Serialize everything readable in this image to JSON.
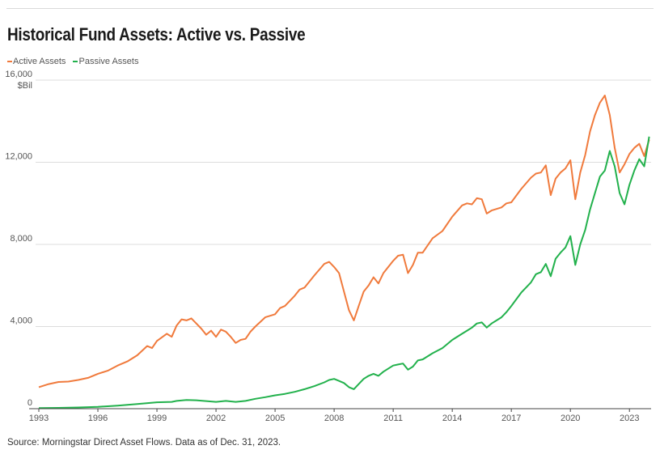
{
  "chart_data": {
    "type": "line",
    "title": "Historical Fund Assets: Active vs. Passive",
    "ylabel": "$Bil",
    "xlabel": "",
    "xlim": [
      1993,
      2024.1
    ],
    "ylim": [
      0,
      16000
    ],
    "yticks": [
      0,
      4000,
      8000,
      12000,
      16000
    ],
    "ytick_labels": [
      "0",
      "4,000",
      "8,000",
      "12,000",
      "16,000"
    ],
    "xticks": [
      1993,
      1996,
      1999,
      2002,
      2005,
      2008,
      2011,
      2014,
      2017,
      2020,
      2023
    ],
    "xtick_labels": [
      "1993",
      "1996",
      "1999",
      "2002",
      "2005",
      "2008",
      "2011",
      "2014",
      "2017",
      "2020",
      "2023"
    ],
    "grid": "horizontal",
    "legend_position": "top-left",
    "source": "Source: Morningstar Direct Asset Flows. Data as of Dec. 31, 2023.",
    "series": [
      {
        "name": "Active Assets",
        "color": "#f07a3c",
        "points": [
          [
            1993.0,
            1050
          ],
          [
            1993.5,
            1200
          ],
          [
            1994.0,
            1300
          ],
          [
            1994.5,
            1320
          ],
          [
            1995.0,
            1400
          ],
          [
            1995.5,
            1500
          ],
          [
            1996.0,
            1700
          ],
          [
            1996.5,
            1850
          ],
          [
            1997.0,
            2100
          ],
          [
            1997.5,
            2300
          ],
          [
            1998.0,
            2600
          ],
          [
            1998.5,
            3050
          ],
          [
            1998.75,
            2950
          ],
          [
            1999.0,
            3300
          ],
          [
            1999.5,
            3650
          ],
          [
            1999.75,
            3500
          ],
          [
            2000.0,
            4050
          ],
          [
            2000.25,
            4350
          ],
          [
            2000.5,
            4300
          ],
          [
            2000.75,
            4400
          ],
          [
            2001.0,
            4150
          ],
          [
            2001.25,
            3900
          ],
          [
            2001.5,
            3600
          ],
          [
            2001.75,
            3800
          ],
          [
            2002.0,
            3500
          ],
          [
            2002.25,
            3850
          ],
          [
            2002.5,
            3750
          ],
          [
            2002.75,
            3500
          ],
          [
            2003.0,
            3200
          ],
          [
            2003.25,
            3350
          ],
          [
            2003.5,
            3400
          ],
          [
            2003.75,
            3750
          ],
          [
            2004.0,
            4000
          ],
          [
            2004.5,
            4450
          ],
          [
            2005.0,
            4600
          ],
          [
            2005.25,
            4900
          ],
          [
            2005.5,
            5000
          ],
          [
            2006.0,
            5500
          ],
          [
            2006.25,
            5800
          ],
          [
            2006.5,
            5900
          ],
          [
            2007.0,
            6500
          ],
          [
            2007.5,
            7050
          ],
          [
            2007.75,
            7150
          ],
          [
            2008.0,
            6900
          ],
          [
            2008.25,
            6600
          ],
          [
            2008.5,
            5700
          ],
          [
            2008.75,
            4800
          ],
          [
            2009.0,
            4300
          ],
          [
            2009.25,
            5000
          ],
          [
            2009.5,
            5700
          ],
          [
            2009.75,
            6000
          ],
          [
            2010.0,
            6400
          ],
          [
            2010.25,
            6100
          ],
          [
            2010.5,
            6600
          ],
          [
            2011.0,
            7200
          ],
          [
            2011.25,
            7450
          ],
          [
            2011.5,
            7500
          ],
          [
            2011.75,
            6600
          ],
          [
            2012.0,
            7000
          ],
          [
            2012.25,
            7600
          ],
          [
            2012.5,
            7600
          ],
          [
            2013.0,
            8300
          ],
          [
            2013.5,
            8650
          ],
          [
            2014.0,
            9350
          ],
          [
            2014.5,
            9900
          ],
          [
            2014.75,
            10000
          ],
          [
            2015.0,
            9950
          ],
          [
            2015.25,
            10250
          ],
          [
            2015.5,
            10200
          ],
          [
            2015.75,
            9500
          ],
          [
            2016.0,
            9650
          ],
          [
            2016.5,
            9800
          ],
          [
            2016.75,
            10000
          ],
          [
            2017.0,
            10050
          ],
          [
            2017.5,
            10700
          ],
          [
            2018.0,
            11250
          ],
          [
            2018.25,
            11450
          ],
          [
            2018.5,
            11500
          ],
          [
            2018.75,
            11850
          ],
          [
            2019.0,
            10400
          ],
          [
            2019.25,
            11200
          ],
          [
            2019.5,
            11500
          ],
          [
            2019.75,
            11700
          ],
          [
            2020.0,
            12100
          ],
          [
            2020.25,
            10200
          ],
          [
            2020.5,
            11500
          ],
          [
            2020.75,
            12350
          ],
          [
            2021.0,
            13500
          ],
          [
            2021.25,
            14300
          ],
          [
            2021.5,
            14900
          ],
          [
            2021.75,
            15250
          ],
          [
            2022.0,
            14300
          ],
          [
            2022.25,
            12700
          ],
          [
            2022.5,
            11500
          ],
          [
            2022.75,
            11900
          ],
          [
            2023.0,
            12400
          ],
          [
            2023.25,
            12700
          ],
          [
            2023.5,
            12900
          ],
          [
            2023.75,
            12300
          ],
          [
            2024.0,
            13100
          ]
        ]
      },
      {
        "name": "Passive Assets",
        "color": "#22b14c",
        "points": [
          [
            1993.0,
            30
          ],
          [
            1994.0,
            40
          ],
          [
            1995.0,
            60
          ],
          [
            1996.0,
            90
          ],
          [
            1997.0,
            150
          ],
          [
            1998.0,
            230
          ],
          [
            1999.0,
            310
          ],
          [
            1999.75,
            330
          ],
          [
            2000.0,
            380
          ],
          [
            2000.5,
            420
          ],
          [
            2001.0,
            410
          ],
          [
            2001.5,
            370
          ],
          [
            2002.0,
            330
          ],
          [
            2002.5,
            380
          ],
          [
            2003.0,
            330
          ],
          [
            2003.5,
            380
          ],
          [
            2004.0,
            480
          ],
          [
            2004.5,
            560
          ],
          [
            2005.0,
            650
          ],
          [
            2005.5,
            720
          ],
          [
            2006.0,
            820
          ],
          [
            2006.5,
            950
          ],
          [
            2007.0,
            1100
          ],
          [
            2007.5,
            1280
          ],
          [
            2007.75,
            1400
          ],
          [
            2008.0,
            1450
          ],
          [
            2008.25,
            1350
          ],
          [
            2008.5,
            1250
          ],
          [
            2008.75,
            1050
          ],
          [
            2009.0,
            950
          ],
          [
            2009.25,
            1200
          ],
          [
            2009.5,
            1450
          ],
          [
            2009.75,
            1600
          ],
          [
            2010.0,
            1700
          ],
          [
            2010.25,
            1600
          ],
          [
            2010.5,
            1800
          ],
          [
            2011.0,
            2100
          ],
          [
            2011.25,
            2150
          ],
          [
            2011.5,
            2200
          ],
          [
            2011.75,
            1900
          ],
          [
            2012.0,
            2050
          ],
          [
            2012.25,
            2350
          ],
          [
            2012.5,
            2400
          ],
          [
            2013.0,
            2700
          ],
          [
            2013.5,
            2950
          ],
          [
            2014.0,
            3350
          ],
          [
            2014.5,
            3650
          ],
          [
            2014.75,
            3800
          ],
          [
            2015.0,
            3950
          ],
          [
            2015.25,
            4150
          ],
          [
            2015.5,
            4200
          ],
          [
            2015.75,
            3950
          ],
          [
            2016.0,
            4150
          ],
          [
            2016.5,
            4450
          ],
          [
            2016.75,
            4700
          ],
          [
            2017.0,
            5000
          ],
          [
            2017.5,
            5650
          ],
          [
            2018.0,
            6150
          ],
          [
            2018.25,
            6550
          ],
          [
            2018.5,
            6650
          ],
          [
            2018.75,
            7050
          ],
          [
            2019.0,
            6450
          ],
          [
            2019.25,
            7300
          ],
          [
            2019.5,
            7600
          ],
          [
            2019.75,
            7850
          ],
          [
            2020.0,
            8400
          ],
          [
            2020.25,
            7000
          ],
          [
            2020.5,
            8000
          ],
          [
            2020.75,
            8700
          ],
          [
            2021.0,
            9700
          ],
          [
            2021.25,
            10500
          ],
          [
            2021.5,
            11300
          ],
          [
            2021.75,
            11600
          ],
          [
            2022.0,
            12550
          ],
          [
            2022.25,
            11800
          ],
          [
            2022.5,
            10500
          ],
          [
            2022.75,
            9950
          ],
          [
            2023.0,
            10900
          ],
          [
            2023.25,
            11600
          ],
          [
            2023.5,
            12150
          ],
          [
            2023.75,
            11800
          ],
          [
            2024.0,
            13250
          ]
        ]
      }
    ]
  }
}
